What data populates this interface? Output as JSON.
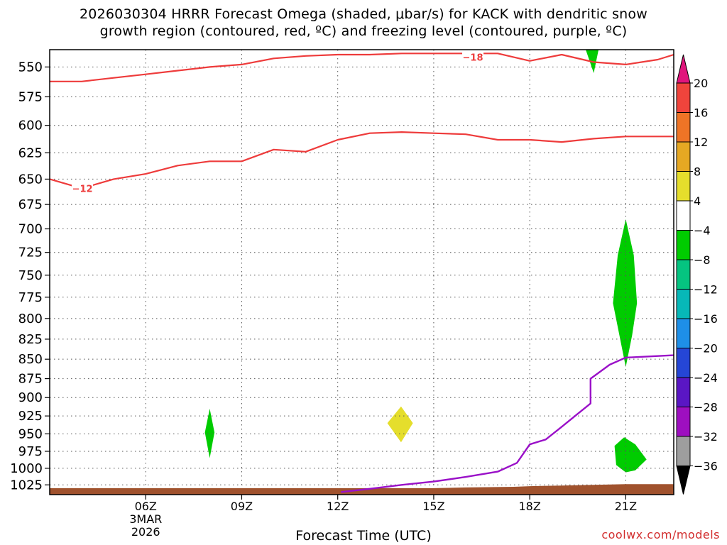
{
  "header": {
    "title_line1": "2026030304 HRRR Forecast Omega (shaded, μbar/s) for KACK with dendritic snow",
    "title_line2": "growth region (contoured, red, ºC) and freezing level (contoured, purple, ºC)"
  },
  "footer": {
    "xlabel": "Forecast Time (UTC)",
    "credit": "coolwx.com/models"
  },
  "colors": {
    "dgz_contour": "#ee3b3b",
    "freezing_level": "#9a10c8",
    "terrain": "#a0522d",
    "grid": "#555555"
  },
  "chart_data": {
    "type": "contour",
    "title": "2026030304 HRRR Forecast Omega (shaded, μbar/s) for KACK with dendritic snow growth region (contoured, red, ºC) and freezing level (contoured, purple, ºC)",
    "xlabel": "Forecast Time (UTC)",
    "ylabel": "",
    "xlim": [
      3,
      22.5
    ],
    "ylim": [
      1040,
      536
    ],
    "y_scale": "log-pressure",
    "y_ticks": [
      550,
      575,
      600,
      625,
      650,
      675,
      700,
      725,
      750,
      775,
      800,
      825,
      850,
      875,
      900,
      925,
      950,
      975,
      1000,
      1025
    ],
    "x_ticks": [
      {
        "x": 6,
        "label": "06Z",
        "sub": [
          "3MAR",
          "2026"
        ]
      },
      {
        "x": 9,
        "label": "09Z",
        "sub": []
      },
      {
        "x": 12,
        "label": "12Z",
        "sub": []
      },
      {
        "x": 15,
        "label": "15Z",
        "sub": []
      },
      {
        "x": 18,
        "label": "18Z",
        "sub": []
      },
      {
        "x": 21,
        "label": "21Z",
        "sub": []
      }
    ],
    "grid": true,
    "contours": [
      {
        "name": "-18",
        "label": "−18",
        "label_at": {
          "x": 16.2,
          "p": 542
        },
        "points": [
          [
            3.0,
            562
          ],
          [
            4.0,
            562
          ],
          [
            5.0,
            559
          ],
          [
            6.0,
            556
          ],
          [
            7.0,
            553
          ],
          [
            8.0,
            550
          ],
          [
            9.0,
            548
          ],
          [
            10.0,
            543
          ],
          [
            11.0,
            541
          ],
          [
            12.0,
            540
          ],
          [
            13.0,
            540
          ],
          [
            14.0,
            539
          ],
          [
            15.0,
            539
          ],
          [
            16.0,
            539
          ],
          [
            17.0,
            539
          ],
          [
            18.0,
            545
          ],
          [
            19.0,
            540
          ],
          [
            20.0,
            546
          ],
          [
            21.0,
            548
          ],
          [
            22.0,
            544
          ],
          [
            22.5,
            540
          ]
        ]
      },
      {
        "name": "-12",
        "label": "−12",
        "label_at": {
          "x": 4.0,
          "p": 659
        },
        "points": [
          [
            3.0,
            650
          ],
          [
            4.0,
            659
          ],
          [
            5.0,
            650
          ],
          [
            6.0,
            645
          ],
          [
            7.0,
            637
          ],
          [
            8.0,
            633
          ],
          [
            9.0,
            633
          ],
          [
            10.0,
            622
          ],
          [
            11.0,
            624
          ],
          [
            12.0,
            613
          ],
          [
            13.0,
            607
          ],
          [
            14.0,
            606
          ],
          [
            15.0,
            607
          ],
          [
            16.0,
            608
          ],
          [
            17.0,
            613
          ],
          [
            18.0,
            613
          ],
          [
            19.0,
            615
          ],
          [
            20.0,
            612
          ],
          [
            21.0,
            610
          ],
          [
            22.5,
            610
          ]
        ]
      }
    ],
    "freezing_level": {
      "points": [
        [
          12.1,
          1036
        ],
        [
          13.0,
          1031
        ],
        [
          14.0,
          1025
        ],
        [
          15.0,
          1020
        ],
        [
          16.0,
          1013
        ],
        [
          17.0,
          1005
        ],
        [
          17.6,
          992
        ],
        [
          18.0,
          965
        ],
        [
          18.5,
          958
        ],
        [
          19.0,
          940
        ],
        [
          19.5,
          922
        ],
        [
          19.9,
          908
        ],
        [
          19.9,
          875
        ],
        [
          20.5,
          857
        ],
        [
          21.0,
          848
        ],
        [
          22.5,
          845
        ]
      ]
    },
    "terrain": {
      "points": [
        [
          3.0,
          1030
        ],
        [
          15.0,
          1030
        ],
        [
          16.0,
          1029
        ],
        [
          17.5,
          1028
        ],
        [
          18.0,
          1027
        ],
        [
          19.0,
          1026
        ],
        [
          20.0,
          1025
        ],
        [
          21.0,
          1024
        ],
        [
          22.5,
          1024
        ]
      ]
    },
    "omega_regions": [
      {
        "value": -6,
        "color": "#00cc00",
        "points": [
          [
            19.75,
            536
          ],
          [
            20.15,
            536
          ],
          [
            20.0,
            555
          ]
        ]
      },
      {
        "value": -6,
        "color": "#00cc00",
        "points": [
          [
            21.0,
            690
          ],
          [
            21.25,
            728
          ],
          [
            21.35,
            782
          ],
          [
            21.2,
            820
          ],
          [
            21.0,
            860
          ],
          [
            20.8,
            820
          ],
          [
            20.6,
            782
          ],
          [
            20.75,
            728
          ]
        ]
      },
      {
        "value": -6,
        "color": "#00cc00",
        "points": [
          [
            8.0,
            915
          ],
          [
            8.15,
            948
          ],
          [
            8.0,
            985
          ],
          [
            7.85,
            948
          ]
        ]
      },
      {
        "value": 6,
        "color": "#e5de2c",
        "points": [
          [
            13.98,
            912
          ],
          [
            14.35,
            935
          ],
          [
            13.98,
            962
          ],
          [
            13.55,
            935
          ]
        ]
      },
      {
        "value": -6,
        "color": "#00cc00",
        "points": [
          [
            20.95,
            955
          ],
          [
            21.3,
            965
          ],
          [
            21.65,
            987
          ],
          [
            21.3,
            1003
          ],
          [
            21.0,
            1006
          ],
          [
            20.7,
            995
          ],
          [
            20.65,
            967
          ]
        ]
      }
    ],
    "colorbar": {
      "labels": [
        "20",
        "16",
        "12",
        "8",
        "4",
        "−4",
        "−8",
        "−12",
        "−16",
        "−20",
        "−24",
        "−28",
        "−32",
        "−36"
      ],
      "bins": [
        {
          "range": [
            16,
            20
          ],
          "color": "#f0443c"
        },
        {
          "range": [
            12,
            16
          ],
          "color": "#ee7426"
        },
        {
          "range": [
            8,
            12
          ],
          "color": "#e6a823"
        },
        {
          "range": [
            4,
            8
          ],
          "color": "#e5de2c"
        },
        {
          "range": [
            -4,
            4
          ],
          "color": "#ffffff"
        },
        {
          "range": [
            -8,
            -4
          ],
          "color": "#00cc00"
        },
        {
          "range": [
            -12,
            -8
          ],
          "color": "#05c480"
        },
        {
          "range": [
            -16,
            -12
          ],
          "color": "#07b8b8"
        },
        {
          "range": [
            -20,
            -16
          ],
          "color": "#1e8fe8"
        },
        {
          "range": [
            -24,
            -20
          ],
          "color": "#2546d6"
        },
        {
          "range": [
            -28,
            -24
          ],
          "color": "#5a16c4"
        },
        {
          "range": [
            -32,
            -28
          ],
          "color": "#9e0fc0"
        },
        {
          "range": [
            -36,
            -32
          ],
          "color": "#9e9e9e"
        }
      ],
      "over_color": "#e0157c",
      "under_color": "#000000"
    }
  }
}
